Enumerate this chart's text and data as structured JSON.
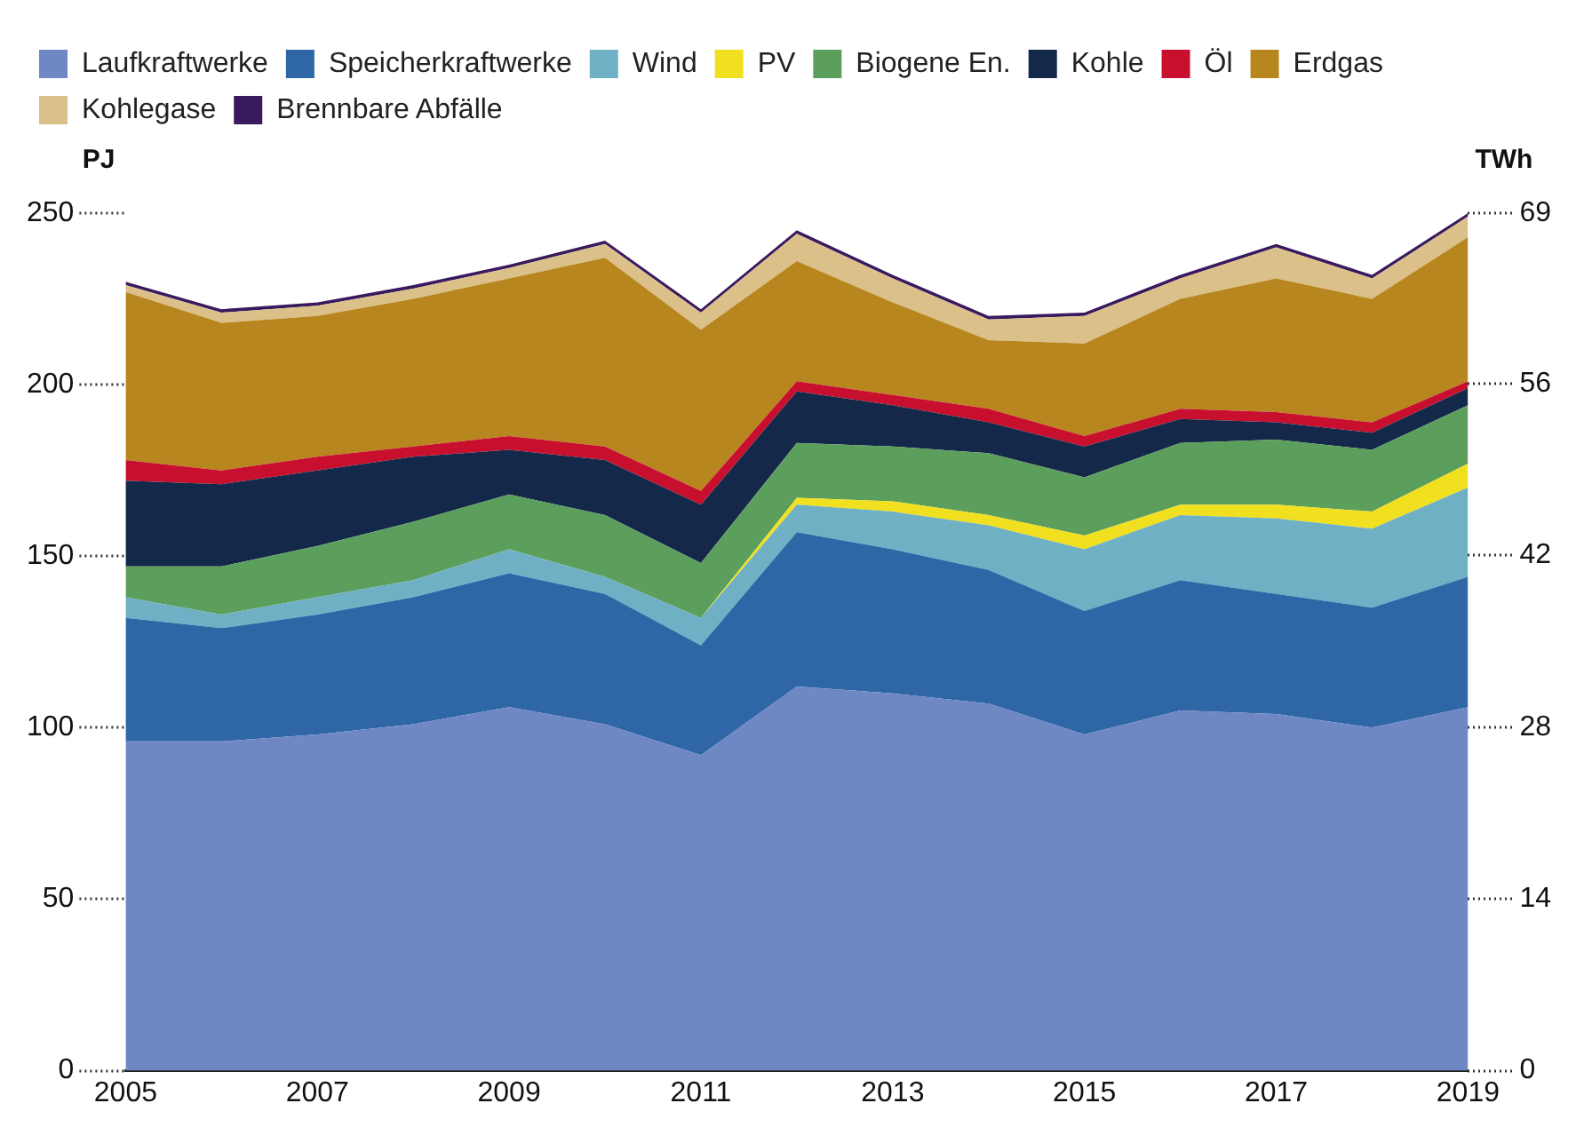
{
  "chart_data": {
    "type": "area",
    "stacked": true,
    "legend": "top",
    "grid": false,
    "ylabel": "PJ",
    "y2label": "TWh",
    "x": [
      2005,
      2006,
      2007,
      2008,
      2009,
      2010,
      2011,
      2012,
      2013,
      2014,
      2015,
      2016,
      2017,
      2018,
      2019
    ],
    "xlim": [
      2005,
      2019
    ],
    "xticks": [
      2005,
      2007,
      2009,
      2011,
      2013,
      2015,
      2017,
      2019
    ],
    "ylim": [
      0,
      250
    ],
    "yticks": [
      0,
      50,
      100,
      150,
      200,
      250
    ],
    "y2lim": [
      0,
      69.4
    ],
    "y2ticks": [
      0,
      {
        "value": 13.9,
        "label": "14"
      },
      {
        "value": 27.8,
        "label": "28"
      },
      {
        "value": 41.7,
        "label": "42"
      },
      {
        "value": 55.6,
        "label": "56"
      },
      {
        "value": 69.4,
        "label": "69"
      }
    ],
    "series": [
      {
        "name": "Laufkraftwerke",
        "color": "#6f88c4",
        "values": [
          96,
          96,
          98,
          101,
          106,
          101,
          92,
          112,
          110,
          107,
          98,
          105,
          104,
          100,
          106
        ]
      },
      {
        "name": "Speicherkraftwerke",
        "color": "#2e66a6",
        "values": [
          36,
          33,
          35,
          37,
          39,
          38,
          32,
          45,
          42,
          39,
          36,
          38,
          35,
          35,
          38
        ]
      },
      {
        "name": "Wind",
        "color": "#6fb0c4",
        "values": [
          6,
          4,
          5,
          5,
          7,
          5,
          8,
          8,
          11,
          13,
          18,
          19,
          22,
          23,
          26
        ]
      },
      {
        "name": "PV",
        "color": "#f0e020",
        "values": [
          0,
          0,
          0,
          0,
          0,
          0,
          0,
          2,
          3,
          3,
          4,
          3,
          4,
          5,
          7
        ]
      },
      {
        "name": "Biogene En.",
        "color": "#5c9e5c",
        "values": [
          9,
          14,
          15,
          17,
          16,
          18,
          16,
          16,
          16,
          18,
          17,
          18,
          19,
          18,
          17
        ]
      },
      {
        "name": "Kohle",
        "color": "#14284a",
        "values": [
          25,
          24,
          22,
          19,
          13,
          16,
          17,
          15,
          12,
          9,
          9,
          7,
          5,
          5,
          5
        ]
      },
      {
        "name": "Öl",
        "color": "#c8102e",
        "values": [
          6,
          4,
          4,
          3,
          4,
          4,
          4,
          3,
          3,
          4,
          3,
          3,
          3,
          3,
          2
        ]
      },
      {
        "name": "Erdgas",
        "color": "#b8861e",
        "values": [
          49,
          43,
          41,
          43,
          46,
          55,
          47,
          35,
          27,
          20,
          27,
          32,
          39,
          36,
          42
        ]
      },
      {
        "name": "Kohlegase",
        "color": "#dcc08a",
        "values": [
          2,
          3,
          3,
          3,
          3,
          4,
          5,
          8,
          7,
          6,
          8,
          6,
          9,
          6,
          6
        ]
      },
      {
        "name": "Brennbare Abfälle",
        "color": "#3a1a5e",
        "values": [
          1,
          1,
          1,
          1,
          1,
          1,
          1,
          1,
          1,
          1,
          1,
          1,
          1,
          1,
          1
        ]
      }
    ]
  }
}
